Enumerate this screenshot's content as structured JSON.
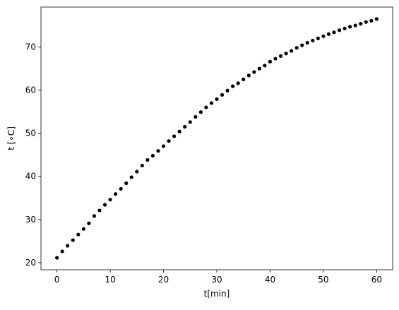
{
  "chart_data": {
    "type": "scatter",
    "x_label": "t[min]",
    "y_label": "t [∘C]",
    "x": [
      0,
      1,
      2,
      3,
      4,
      5,
      6,
      7,
      8,
      9,
      10,
      11,
      12,
      13,
      14,
      15,
      16,
      17,
      18,
      19,
      20,
      21,
      22,
      23,
      24,
      25,
      26,
      27,
      28,
      29,
      30,
      31,
      32,
      33,
      34,
      35,
      36,
      37,
      38,
      39,
      40,
      41,
      42,
      43,
      44,
      45,
      46,
      47,
      48,
      49,
      50,
      51,
      52,
      53,
      54,
      55,
      56,
      57,
      58,
      59,
      60
    ],
    "values": [
      21.1,
      22.6,
      23.9,
      25.2,
      26.5,
      27.8,
      29.1,
      30.8,
      32.1,
      33.4,
      34.6,
      35.9,
      37.1,
      38.4,
      39.8,
      41.1,
      42.5,
      43.8,
      44.8,
      45.9,
      47.0,
      48.2,
      49.3,
      50.4,
      51.5,
      52.6,
      53.8,
      54.9,
      56.0,
      57.0,
      57.9,
      58.9,
      59.9,
      60.9,
      61.6,
      62.5,
      63.4,
      64.2,
      65.0,
      65.7,
      66.6,
      67.3,
      67.9,
      68.5,
      69.1,
      69.8,
      70.4,
      71.0,
      71.5,
      72.0,
      72.5,
      73.0,
      73.4,
      73.9,
      74.3,
      74.7,
      75.0,
      75.4,
      75.8,
      76.1,
      76.5
    ],
    "color": "#000000",
    "xlim": [
      -3,
      63
    ],
    "xticks": [
      0,
      10,
      20,
      30,
      40,
      50,
      60
    ],
    "ylim": [
      18.33,
      79.27
    ],
    "yticks": [
      20,
      30,
      40,
      50,
      60,
      70
    ]
  }
}
